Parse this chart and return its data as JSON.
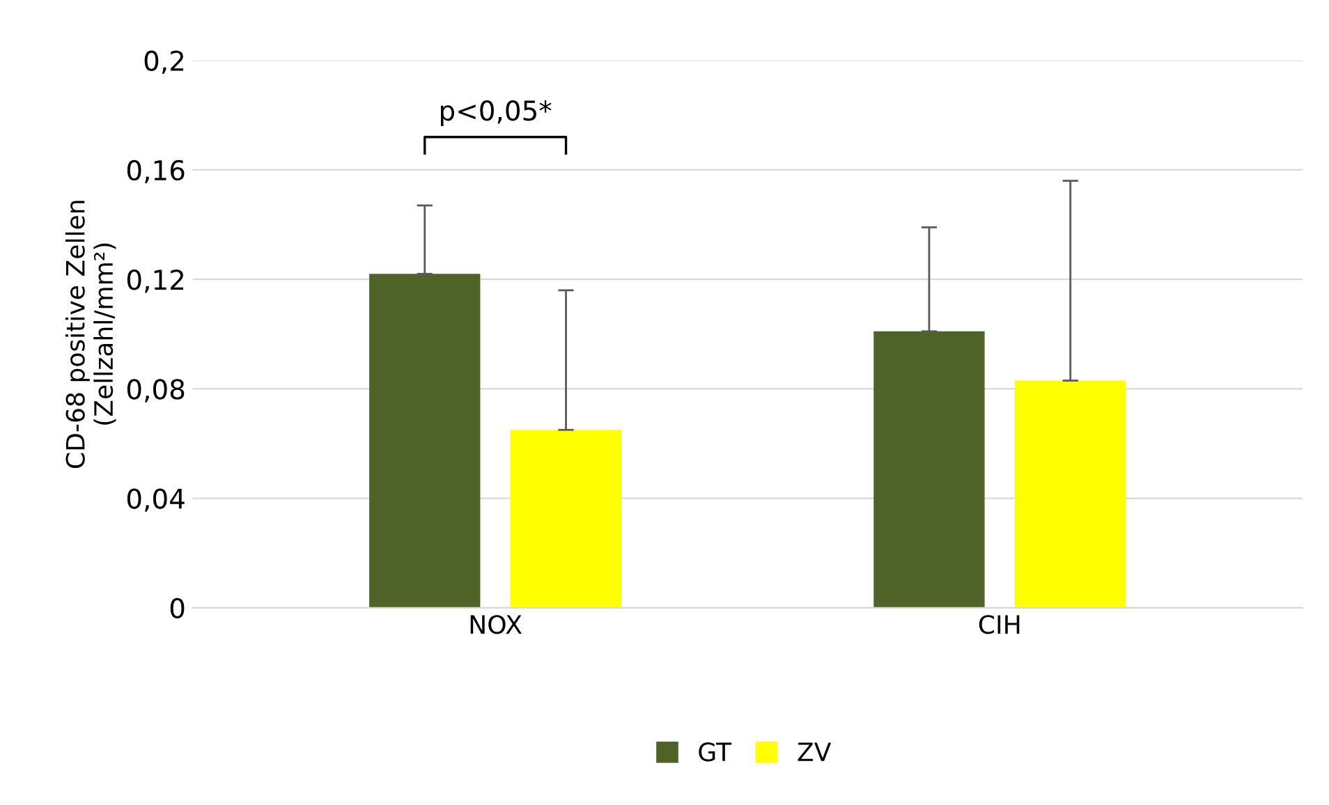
{
  "chart_data": {
    "type": "bar",
    "ylabel": "CD-68 positive Zellen\n(Zellzahl/mm²)",
    "categories": [
      "NOX",
      "CIH"
    ],
    "series": [
      {
        "name": "GT",
        "color": "#4f6228",
        "values": [
          0.122,
          0.101
        ],
        "errors": [
          [
            0.122,
            0.147
          ],
          [
            0.101,
            0.139
          ]
        ]
      },
      {
        "name": "ZV",
        "color": "#ffff00",
        "values": [
          0.065,
          0.083
        ],
        "errors": [
          [
            0.065,
            0.116
          ],
          [
            0.083,
            0.156
          ]
        ]
      }
    ],
    "ylim": [
      0,
      0.2
    ],
    "yticks": [
      0,
      {
        "value": 0.04,
        "label": "0,04"
      },
      {
        "value": 0.08,
        "label": "0,08"
      },
      {
        "value": 0.12,
        "label": "0,12"
      },
      {
        "value": 0.16,
        "label": "0,16"
      },
      {
        "value": 0.2,
        "label": "0,2"
      }
    ],
    "grid": "y",
    "legend": "bottom",
    "annotations": [
      "p<0,05*"
    ]
  }
}
